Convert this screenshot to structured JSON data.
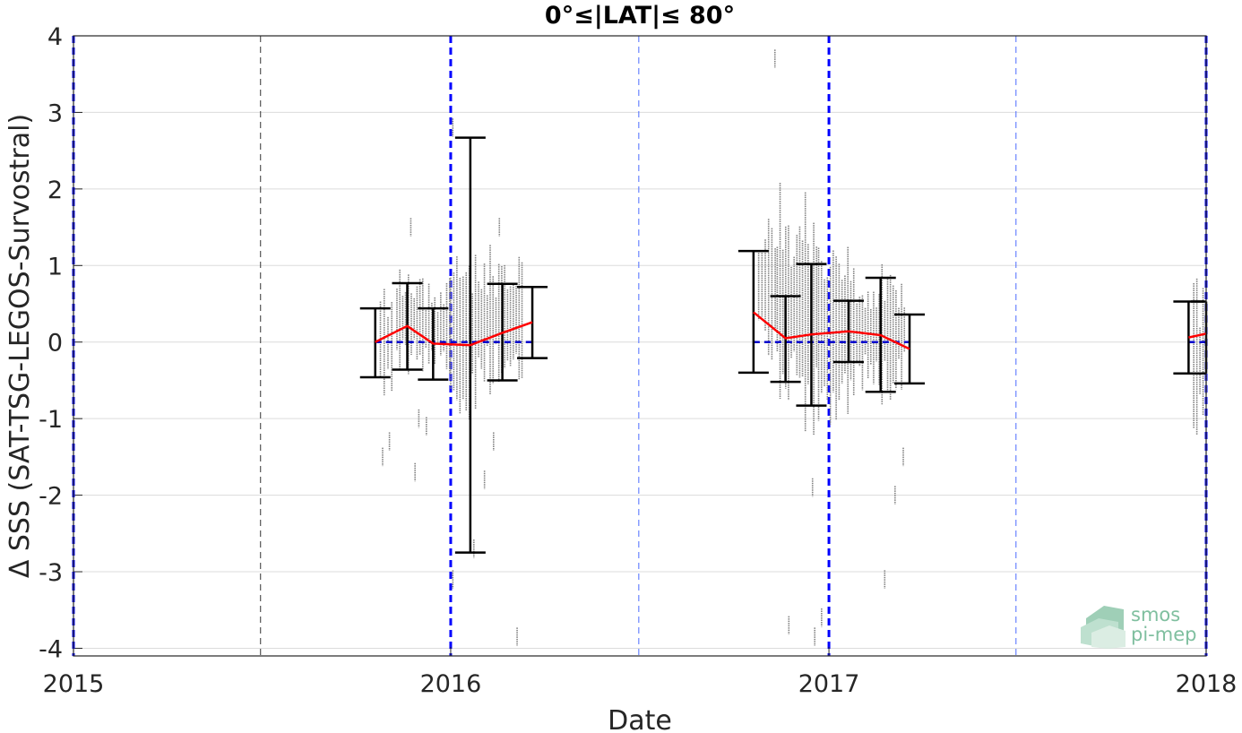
{
  "chart_data": {
    "type": "scatter",
    "title": "0°≤|LAT|≤ 80°",
    "xlabel": "Date",
    "ylabel": "Δ SSS (SAT-TSG-LEGOS-Survostral)",
    "x_ticks": [
      "2015",
      "2016",
      "2017",
      "2018"
    ],
    "y_ticks": [
      4,
      3,
      2,
      1,
      0,
      -1,
      -2,
      -3,
      -4
    ],
    "xlim": [
      "2015-01-01",
      "2018-01-01"
    ],
    "ylim": [
      -4.1,
      4.0
    ],
    "grid": true,
    "year_lines": [
      "2015-01-01",
      "2016-01-01",
      "2017-01-01",
      "2018-01-01"
    ],
    "half_year_lines": [
      "2015-07-01",
      "2016-07-01",
      "2017-07-01"
    ],
    "zero_line": {
      "from": "2015-10-20",
      "to": "2016-03-20",
      "segment2_from": "2016-10-20",
      "segment2_to": "2017-03-20",
      "segment3_from": "2017-12-15",
      "segment3_to": "2018-01-01",
      "value": 0
    },
    "error_bars": [
      {
        "date": "2015-10-20",
        "mean": 0.0,
        "upper": 0.44,
        "lower": -0.46
      },
      {
        "date": "2015-11-20",
        "mean": 0.21,
        "upper": 0.77,
        "lower": -0.36
      },
      {
        "date": "2015-12-15",
        "mean": -0.02,
        "upper": 0.44,
        "lower": -0.49
      },
      {
        "date": "2016-01-20",
        "mean": -0.04,
        "upper": 2.67,
        "lower": -2.75
      },
      {
        "date": "2016-02-20",
        "mean": 0.12,
        "upper": 0.76,
        "lower": -0.5
      },
      {
        "date": "2016-03-20",
        "mean": 0.26,
        "upper": 0.72,
        "lower": -0.21
      },
      {
        "date": "2016-10-20",
        "mean": 0.39,
        "upper": 1.19,
        "lower": -0.4
      },
      {
        "date": "2016-11-20",
        "mean": 0.05,
        "upper": 0.6,
        "lower": -0.52
      },
      {
        "date": "2016-12-15",
        "mean": 0.1,
        "upper": 1.02,
        "lower": -0.83
      },
      {
        "date": "2017-01-20",
        "mean": 0.14,
        "upper": 0.54,
        "lower": -0.26
      },
      {
        "date": "2017-02-20",
        "mean": 0.09,
        "upper": 0.84,
        "lower": -0.65
      },
      {
        "date": "2017-03-20",
        "mean": -0.09,
        "upper": 0.36,
        "lower": -0.54
      },
      {
        "date": "2017-12-15",
        "mean": 0.06,
        "upper": 0.53,
        "lower": -0.41
      },
      {
        "date": "2018-01-01",
        "mean": 0.11,
        "upper": 0.53,
        "lower": -0.41
      }
    ],
    "scatter_clusters": [
      {
        "from": "2015-10-25",
        "to": "2015-11-05",
        "lo": -0.8,
        "hi": 0.8,
        "outliers": [
          -1.3,
          -1.5
        ]
      },
      {
        "from": "2015-11-10",
        "to": "2015-12-05",
        "lo": -0.5,
        "hi": 1.1,
        "outliers": [
          1.5,
          -1.0,
          -1.7
        ]
      },
      {
        "from": "2015-12-08",
        "to": "2015-12-31",
        "lo": -0.6,
        "hi": 1.0,
        "outliers": [
          -1.1
        ]
      },
      {
        "from": "2016-01-01",
        "to": "2016-01-25",
        "lo": -1.2,
        "hi": 1.4,
        "outliers": [
          2.8,
          -2.7,
          -3.1
        ]
      },
      {
        "from": "2016-01-28",
        "to": "2016-03-10",
        "lo": -0.9,
        "hi": 1.4,
        "outliers": [
          1.5,
          -1.8,
          -3.85,
          -1.3
        ]
      },
      {
        "from": "2016-10-25",
        "to": "2016-11-10",
        "lo": -0.8,
        "hi": 2.3,
        "outliers": [
          3.7
        ]
      },
      {
        "from": "2016-11-12",
        "to": "2016-12-20",
        "lo": -1.3,
        "hi": 2.3,
        "outliers": [
          -1.9,
          -3.7,
          -3.85
        ]
      },
      {
        "from": "2016-12-22",
        "to": "2017-01-25",
        "lo": -1.3,
        "hi": 1.6,
        "outliers": [
          -3.6
        ]
      },
      {
        "from": "2017-01-28",
        "to": "2017-03-15",
        "lo": -0.9,
        "hi": 1.1,
        "outliers": [
          -2.0,
          -3.1,
          -1.5
        ]
      },
      {
        "from": "2017-12-20",
        "to": "2018-01-01",
        "lo": -1.4,
        "hi": 1.0,
        "outliers": []
      }
    ],
    "colors": {
      "scatter": "#808080",
      "error_bar": "#000000",
      "mean_line": "#ff0000",
      "zero_line": "#0000cc",
      "year_line": "#0000ff",
      "half_year_line": "#4b6bff",
      "grid": "#dcdcdc"
    }
  },
  "logo": {
    "line1": "smos",
    "line2": "pi-mep"
  }
}
